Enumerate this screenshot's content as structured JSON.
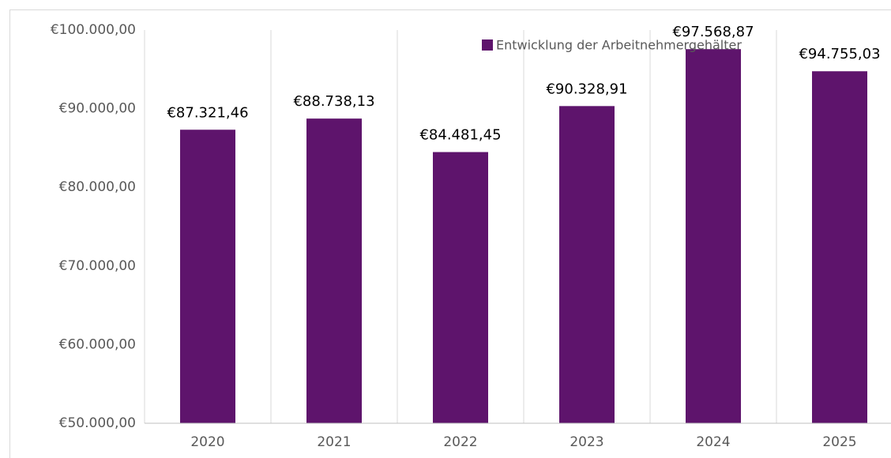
{
  "chart_data": {
    "type": "bar",
    "categories": [
      "2020",
      "2021",
      "2022",
      "2023",
      "2024",
      "2025"
    ],
    "series": [
      {
        "name": "Entwicklung der Arbeitnehmergehälter",
        "color": "#5e146c",
        "values": [
          87321.46,
          88738.13,
          84481.45,
          90328.91,
          97568.87,
          94755.03
        ],
        "value_labels": [
          "€87.321,46",
          "€88.738,13",
          "€84.481,45",
          "€90.328,91",
          "€97.568,87",
          "€94.755,03"
        ]
      }
    ],
    "ylim": [
      50000,
      100000
    ],
    "yticks": [
      {
        "value": 50000,
        "label": "€50.000,00"
      },
      {
        "value": 60000,
        "label": "€60.000,00"
      },
      {
        "value": 70000,
        "label": "€70.000,00"
      },
      {
        "value": 80000,
        "label": "€80.000,00"
      },
      {
        "value": 90000,
        "label": "€90.000,00"
      },
      {
        "value": 100000,
        "label": "€100.000,00"
      }
    ],
    "legend": "top-right"
  }
}
